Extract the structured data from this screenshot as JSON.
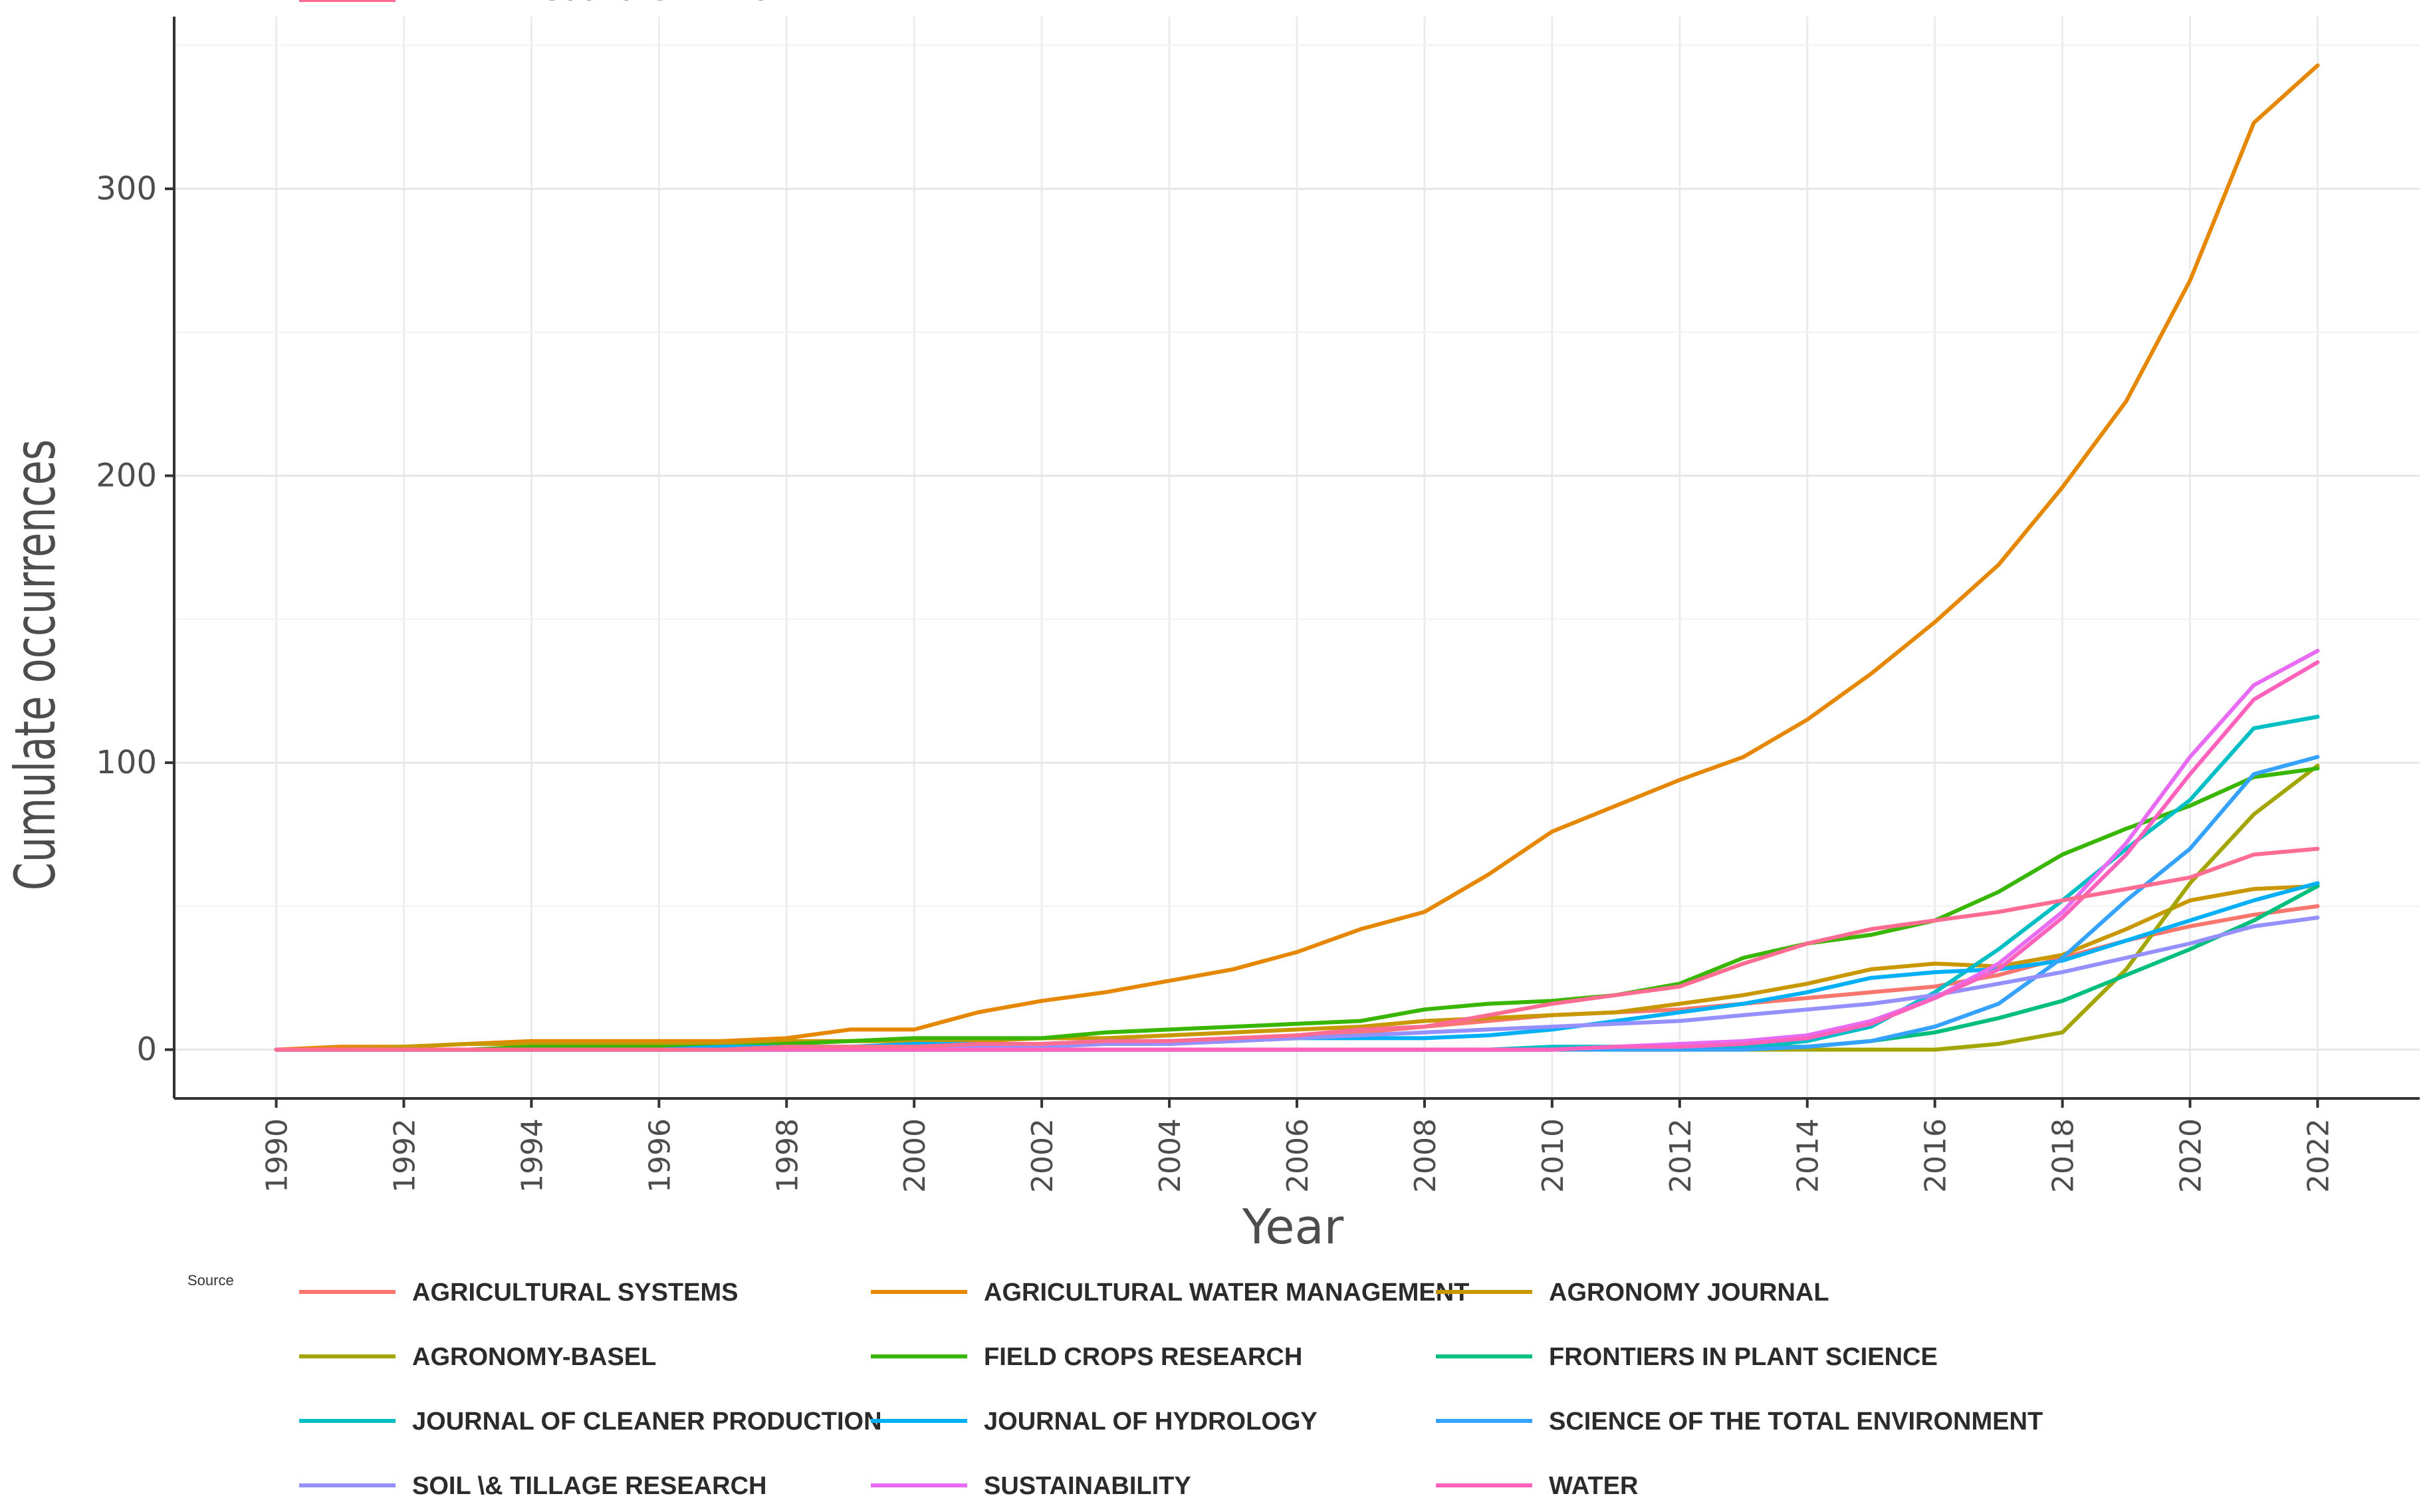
{
  "chart_data": {
    "type": "line",
    "title": "",
    "xlabel": "Year",
    "ylabel": "Cumulate occurrences",
    "x": [
      1990,
      1991,
      1992,
      1993,
      1994,
      1995,
      1996,
      1997,
      1998,
      1999,
      2000,
      2001,
      2002,
      2003,
      2004,
      2005,
      2006,
      2007,
      2008,
      2009,
      2010,
      2011,
      2012,
      2013,
      2014,
      2015,
      2016,
      2017,
      2018,
      2019,
      2020,
      2021,
      2022
    ],
    "x_ticks": [
      "1990",
      "1992",
      "1994",
      "1996",
      "1998",
      "2000",
      "2002",
      "2004",
      "2006",
      "2008",
      "2010",
      "2012",
      "2014",
      "2016",
      "2018",
      "2020",
      "2022"
    ],
    "y_ticks": [
      "0",
      "100",
      "200",
      "300"
    ],
    "ylim": [
      -17,
      360
    ],
    "xlim": [
      1988.4,
      2023.6
    ],
    "grid": true,
    "legend_title": "Source",
    "legend_position": "bottom",
    "series": [
      {
        "name": "AGRICULTURAL SYSTEMS",
        "color": "#F8766D",
        "values": [
          0,
          0,
          0,
          0,
          0,
          0,
          0,
          0,
          0,
          0,
          1,
          1,
          1,
          2,
          2,
          3,
          4,
          6,
          8,
          10,
          12,
          13,
          14,
          16,
          18,
          20,
          22,
          26,
          32,
          38,
          43,
          47,
          50
        ]
      },
      {
        "name": "AGRICULTURAL WATER MANAGEMENT",
        "color": "#E58700",
        "values": [
          0,
          1,
          1,
          2,
          3,
          3,
          3,
          3,
          4,
          7,
          7,
          13,
          17,
          20,
          24,
          28,
          34,
          42,
          48,
          61,
          76,
          85,
          94,
          102,
          115,
          131,
          149,
          169,
          196,
          226,
          268,
          323,
          343
        ]
      },
      {
        "name": "AGRONOMY JOURNAL",
        "color": "#C99800",
        "values": [
          0,
          0,
          1,
          2,
          2,
          2,
          2,
          2,
          3,
          3,
          3,
          3,
          4,
          4,
          5,
          6,
          7,
          8,
          10,
          11,
          12,
          13,
          16,
          19,
          23,
          28,
          30,
          29,
          33,
          42,
          52,
          56,
          57
        ]
      },
      {
        "name": "AGRONOMY-BASEL",
        "color": "#A3A500",
        "values": [
          0,
          0,
          0,
          0,
          0,
          0,
          0,
          0,
          0,
          0,
          0,
          0,
          0,
          0,
          0,
          0,
          0,
          0,
          0,
          0,
          0,
          0,
          0,
          0,
          0,
          0,
          0,
          2,
          6,
          28,
          58,
          82,
          99
        ]
      },
      {
        "name": "FIELD CROPS RESEARCH",
        "color": "#39B600",
        "values": [
          0,
          0,
          0,
          0,
          1,
          1,
          1,
          1,
          2,
          3,
          4,
          4,
          4,
          6,
          7,
          8,
          9,
          10,
          14,
          16,
          17,
          19,
          23,
          32,
          37,
          40,
          45,
          55,
          68,
          77,
          85,
          95,
          98
        ]
      },
      {
        "name": "FRONTIERS IN PLANT SCIENCE",
        "color": "#00BF7D",
        "values": [
          0,
          0,
          0,
          0,
          0,
          0,
          0,
          0,
          0,
          0,
          0,
          0,
          0,
          0,
          0,
          0,
          0,
          0,
          0,
          0,
          0,
          1,
          1,
          1,
          1,
          3,
          6,
          11,
          17,
          26,
          35,
          45,
          57
        ]
      },
      {
        "name": "JOURNAL OF CLEANER PRODUCTION",
        "color": "#00BFC4",
        "values": [
          0,
          0,
          0,
          0,
          0,
          0,
          0,
          0,
          0,
          0,
          0,
          0,
          0,
          0,
          0,
          0,
          0,
          0,
          0,
          0,
          1,
          1,
          1,
          1,
          3,
          8,
          20,
          35,
          52,
          70,
          87,
          112,
          116
        ]
      },
      {
        "name": "JOURNAL OF HYDROLOGY",
        "color": "#00B0F6",
        "values": [
          0,
          0,
          0,
          0,
          0,
          0,
          0,
          1,
          1,
          1,
          2,
          2,
          2,
          3,
          3,
          3,
          4,
          4,
          4,
          5,
          7,
          10,
          13,
          16,
          20,
          25,
          27,
          28,
          31,
          38,
          45,
          52,
          58
        ]
      },
      {
        "name": "SCIENCE OF THE TOTAL ENVIRONMENT",
        "color": "#35A2FF",
        "values": [
          0,
          0,
          0,
          0,
          0,
          0,
          0,
          0,
          0,
          0,
          0,
          0,
          0,
          0,
          0,
          0,
          0,
          0,
          0,
          0,
          0,
          0,
          0,
          0,
          1,
          3,
          8,
          16,
          32,
          52,
          70,
          96,
          102
        ]
      },
      {
        "name": "SOIL \\& TILLAGE RESEARCH",
        "color": "#9590FF",
        "values": [
          0,
          0,
          0,
          0,
          0,
          0,
          0,
          0,
          0,
          1,
          1,
          1,
          1,
          2,
          2,
          3,
          4,
          5,
          6,
          7,
          8,
          9,
          10,
          12,
          14,
          16,
          19,
          23,
          27,
          32,
          37,
          43,
          46
        ]
      },
      {
        "name": "SUSTAINABILITY",
        "color": "#E76BF3",
        "values": [
          0,
          0,
          0,
          0,
          0,
          0,
          0,
          0,
          0,
          0,
          0,
          0,
          0,
          0,
          0,
          0,
          0,
          0,
          0,
          0,
          0,
          1,
          2,
          3,
          5,
          10,
          18,
          30,
          48,
          72,
          102,
          127,
          139
        ]
      },
      {
        "name": "WATER",
        "color": "#FF62BC",
        "values": [
          0,
          0,
          0,
          0,
          0,
          0,
          0,
          0,
          0,
          0,
          0,
          0,
          0,
          0,
          0,
          0,
          0,
          0,
          0,
          0,
          0,
          1,
          1,
          2,
          4,
          9,
          18,
          28,
          46,
          68,
          96,
          122,
          135
        ]
      },
      {
        "name": "WATER RESOURCES MANAGEMENT",
        "color": "#FF6C91",
        "values": [
          0,
          0,
          0,
          0,
          0,
          0,
          0,
          0,
          1,
          1,
          1,
          2,
          2,
          3,
          3,
          4,
          5,
          7,
          8,
          12,
          16,
          19,
          22,
          30,
          37,
          42,
          45,
          48,
          52,
          56,
          60,
          68,
          70
        ]
      }
    ]
  }
}
